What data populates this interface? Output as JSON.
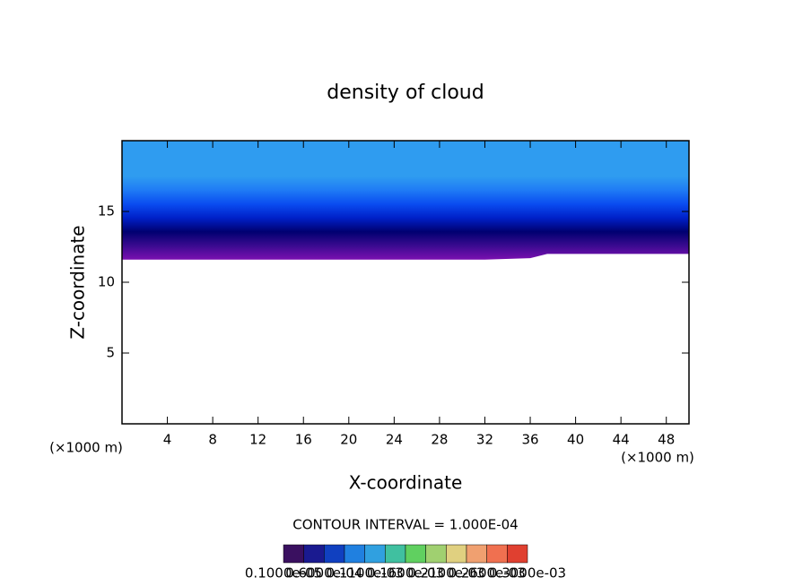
{
  "chart_data": {
    "type": "contour",
    "title": "density of cloud",
    "x_label": "X-coordinate",
    "y_label": "Z-coordinate",
    "x_unit": "(×1000 m)",
    "y_unit": "(×1000 m)",
    "annotation": "CONTOUR INTERVAL = 1.000E-04",
    "xlim": [
      0,
      50
    ],
    "xticks": [
      4,
      8,
      12,
      16,
      20,
      24,
      28,
      32,
      36,
      40,
      44,
      48
    ],
    "ylim": [
      0,
      20
    ],
    "yticks": [
      5,
      10,
      15
    ],
    "x": [
      0,
      4,
      8,
      12,
      16,
      20,
      24,
      28,
      32,
      36,
      37.5,
      40,
      44,
      48,
      50
    ],
    "cloud_base": [
      11.6,
      11.6,
      11.6,
      11.6,
      11.6,
      11.6,
      11.6,
      11.6,
      11.6,
      11.7,
      12.0,
      12.0,
      12.0,
      12.0,
      12.0
    ],
    "colors": [
      "#2f9cf0",
      "#1f7bf5",
      "#0a4cf0",
      "#0020c8",
      "#000070",
      "#3a0a90",
      "#7a10b0"
    ],
    "colorbar_colors": [
      "#3a1060",
      "#1a1a90",
      "#1040c0",
      "#2080e0",
      "#30a0e0",
      "#40c0a0",
      "#60d060",
      "#a0d070",
      "#e0d080",
      "#f0a070",
      "#f07050",
      "#e04030"
    ],
    "colorbar_labels": [
      "0.1000e-05",
      "0.6000e-04",
      "0.1100e-03",
      "0.1600e-03",
      "0.2100e-03",
      "0.2600e-03",
      "0.3000e-03"
    ]
  }
}
